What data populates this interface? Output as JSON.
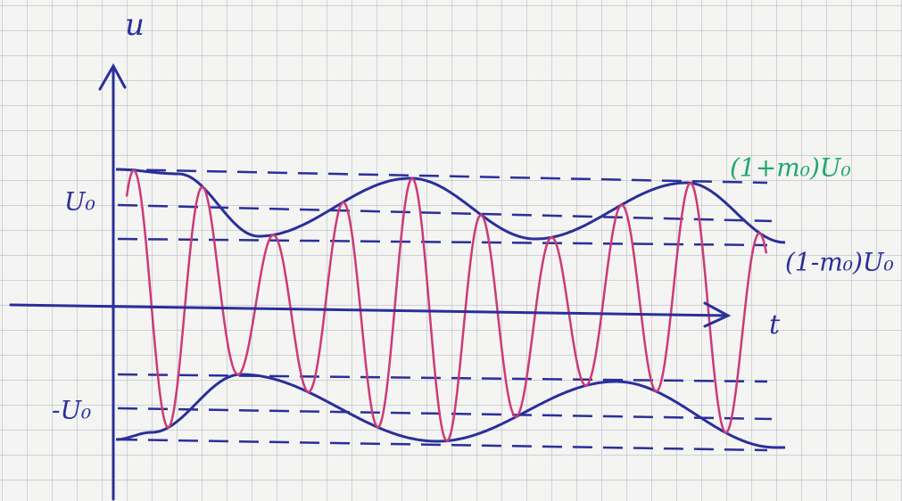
{
  "axes": {
    "y_label": "u",
    "x_label": "t"
  },
  "levels": {
    "u0": "U₀",
    "minus_u0": "-U₀",
    "upper": "(1+m₀)U₀",
    "lower": "(1-m₀)U₀"
  }
}
